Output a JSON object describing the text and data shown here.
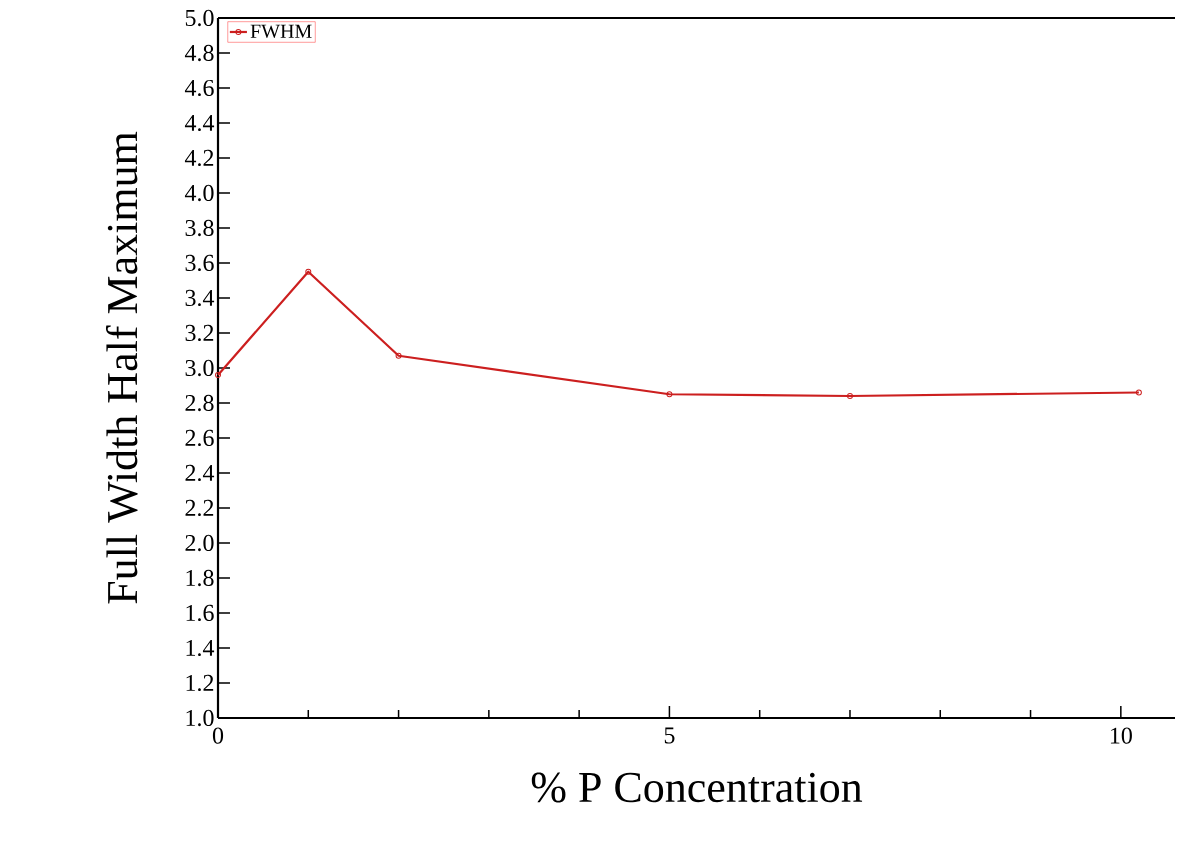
{
  "chart_data": {
    "type": "line",
    "xlabel": "% P Concentration",
    "ylabel": "Full Width Half Maximum",
    "x": [
      0,
      1,
      2,
      5,
      7,
      10.2
    ],
    "series": [
      {
        "name": "FWHM",
        "color": "#cc1f1f",
        "values": [
          2.96,
          3.55,
          3.07,
          2.85,
          2.84,
          2.86
        ]
      }
    ],
    "xlim": [
      0,
      10.6
    ],
    "xticks": [
      0,
      5,
      10
    ],
    "ylim": [
      1.0,
      5.0
    ],
    "yticks": [
      {
        "value": 1.0,
        "label": "1.0"
      },
      {
        "value": 1.2,
        "label": "1.2"
      },
      {
        "value": 1.4,
        "label": "1.4"
      },
      {
        "value": 1.6,
        "label": "1.6"
      },
      {
        "value": 1.8,
        "label": "1.8"
      },
      {
        "value": 2.0,
        "label": "2.0"
      },
      {
        "value": 2.2,
        "label": "2.2"
      },
      {
        "value": 2.4,
        "label": "2.4"
      },
      {
        "value": 2.6,
        "label": "2.6"
      },
      {
        "value": 2.8,
        "label": "2.8"
      },
      {
        "value": 3.0,
        "label": "3.0"
      },
      {
        "value": 3.2,
        "label": "3.2"
      },
      {
        "value": 3.4,
        "label": "3.4"
      },
      {
        "value": 3.6,
        "label": "3.6"
      },
      {
        "value": 3.8,
        "label": "3.8"
      },
      {
        "value": 4.0,
        "label": "4.0"
      },
      {
        "value": 4.2,
        "label": "4.2"
      },
      {
        "value": 4.4,
        "label": "4.4"
      },
      {
        "value": 4.6,
        "label": "4.6"
      },
      {
        "value": 4.8,
        "label": "4.8"
      },
      {
        "value": 5.0,
        "label": "5.0"
      }
    ],
    "grid": false,
    "legend": "top left",
    "marker": "circle",
    "line_style": "solid"
  }
}
